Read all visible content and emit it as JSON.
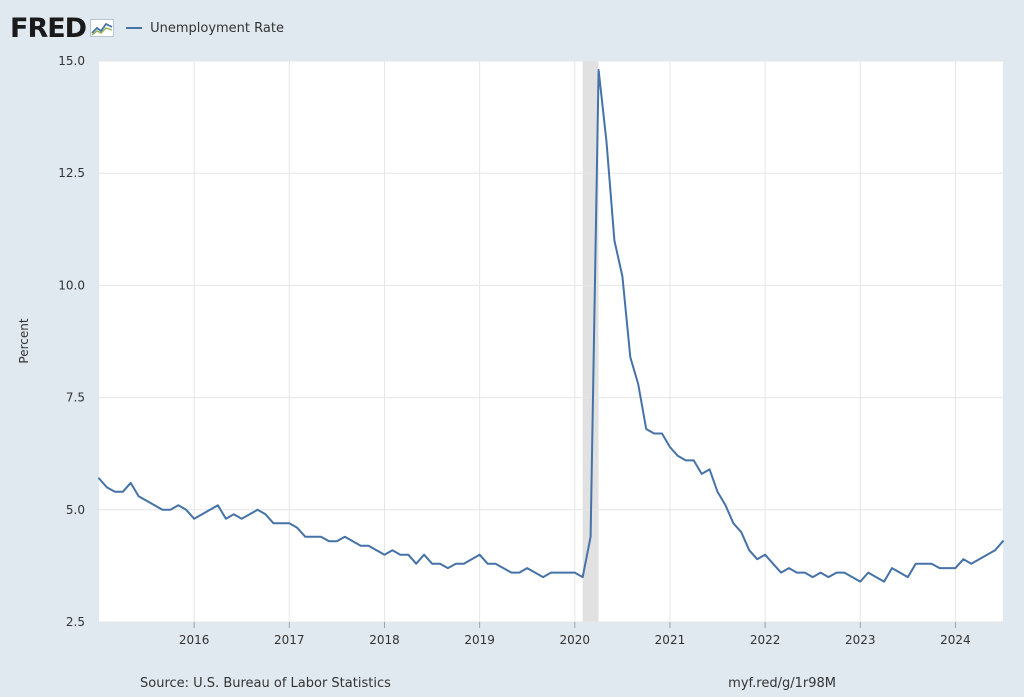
{
  "header": {
    "logo_text": "FRED",
    "logo_icon": "fred-line-chart-logo-icon"
  },
  "footer": {
    "source": "Source: U.S. Bureau of Labor Statistics",
    "short_url": "myf.red/g/1r98M"
  },
  "colors": {
    "series": "#4572a7",
    "recession": "#e1e1e1",
    "page_background": "#e1e9f0",
    "plot_background": "#ffffff",
    "gridline": "#e6e6e6"
  },
  "chart_data": {
    "type": "line",
    "title": "",
    "xlabel": "",
    "ylabel": "Percent",
    "ylim": [
      2.5,
      15.0
    ],
    "yticks": [
      2.5,
      5.0,
      7.5,
      10.0,
      12.5,
      15.0
    ],
    "ytick_labels": [
      "2.5",
      "5.0",
      "7.5",
      "10.0",
      "12.5",
      "15.0"
    ],
    "xlim": [
      "2015-01",
      "2024-07"
    ],
    "xticks": [
      "2016-01",
      "2017-01",
      "2018-01",
      "2019-01",
      "2020-01",
      "2021-01",
      "2022-01",
      "2023-01",
      "2024-01"
    ],
    "xtick_labels": [
      "2016",
      "2017",
      "2018",
      "2019",
      "2020",
      "2021",
      "2022",
      "2023",
      "2024"
    ],
    "grid": true,
    "legend_position": "top-left",
    "shaded_periods": [
      {
        "label": "recession",
        "start": "2020-02",
        "end": "2020-04"
      }
    ],
    "series": [
      {
        "name": "Unemployment Rate",
        "x": [
          "2015-01",
          "2015-02",
          "2015-03",
          "2015-04",
          "2015-05",
          "2015-06",
          "2015-07",
          "2015-08",
          "2015-09",
          "2015-10",
          "2015-11",
          "2015-12",
          "2016-01",
          "2016-02",
          "2016-03",
          "2016-04",
          "2016-05",
          "2016-06",
          "2016-07",
          "2016-08",
          "2016-09",
          "2016-10",
          "2016-11",
          "2016-12",
          "2017-01",
          "2017-02",
          "2017-03",
          "2017-04",
          "2017-05",
          "2017-06",
          "2017-07",
          "2017-08",
          "2017-09",
          "2017-10",
          "2017-11",
          "2017-12",
          "2018-01",
          "2018-02",
          "2018-03",
          "2018-04",
          "2018-05",
          "2018-06",
          "2018-07",
          "2018-08",
          "2018-09",
          "2018-10",
          "2018-11",
          "2018-12",
          "2019-01",
          "2019-02",
          "2019-03",
          "2019-04",
          "2019-05",
          "2019-06",
          "2019-07",
          "2019-08",
          "2019-09",
          "2019-10",
          "2019-11",
          "2019-12",
          "2020-01",
          "2020-02",
          "2020-03",
          "2020-04",
          "2020-05",
          "2020-06",
          "2020-07",
          "2020-08",
          "2020-09",
          "2020-10",
          "2020-11",
          "2020-12",
          "2021-01",
          "2021-02",
          "2021-03",
          "2021-04",
          "2021-05",
          "2021-06",
          "2021-07",
          "2021-08",
          "2021-09",
          "2021-10",
          "2021-11",
          "2021-12",
          "2022-01",
          "2022-02",
          "2022-03",
          "2022-04",
          "2022-05",
          "2022-06",
          "2022-07",
          "2022-08",
          "2022-09",
          "2022-10",
          "2022-11",
          "2022-12",
          "2023-01",
          "2023-02",
          "2023-03",
          "2023-04",
          "2023-05",
          "2023-06",
          "2023-07",
          "2023-08",
          "2023-09",
          "2023-10",
          "2023-11",
          "2023-12",
          "2024-01",
          "2024-02",
          "2024-03",
          "2024-04",
          "2024-05",
          "2024-06",
          "2024-07"
        ],
        "values": [
          5.7,
          5.5,
          5.4,
          5.4,
          5.6,
          5.3,
          5.2,
          5.1,
          5.0,
          5.0,
          5.1,
          5.0,
          4.8,
          4.9,
          5.0,
          5.1,
          4.8,
          4.9,
          4.8,
          4.9,
          5.0,
          4.9,
          4.7,
          4.7,
          4.7,
          4.6,
          4.4,
          4.4,
          4.4,
          4.3,
          4.3,
          4.4,
          4.3,
          4.2,
          4.2,
          4.1,
          4.0,
          4.1,
          4.0,
          4.0,
          3.8,
          4.0,
          3.8,
          3.8,
          3.7,
          3.8,
          3.8,
          3.9,
          4.0,
          3.8,
          3.8,
          3.7,
          3.6,
          3.6,
          3.7,
          3.6,
          3.5,
          3.6,
          3.6,
          3.6,
          3.6,
          3.5,
          4.4,
          14.8,
          13.2,
          11.0,
          10.2,
          8.4,
          7.8,
          6.8,
          6.7,
          6.7,
          6.4,
          6.2,
          6.1,
          6.1,
          5.8,
          5.9,
          5.4,
          5.1,
          4.7,
          4.5,
          4.1,
          3.9,
          4.0,
          3.8,
          3.6,
          3.7,
          3.6,
          3.6,
          3.5,
          3.6,
          3.5,
          3.6,
          3.6,
          3.5,
          3.4,
          3.6,
          3.5,
          3.4,
          3.7,
          3.6,
          3.5,
          3.8,
          3.8,
          3.8,
          3.7,
          3.7,
          3.7,
          3.9,
          3.8,
          3.9,
          4.0,
          4.1,
          4.3
        ]
      }
    ]
  }
}
